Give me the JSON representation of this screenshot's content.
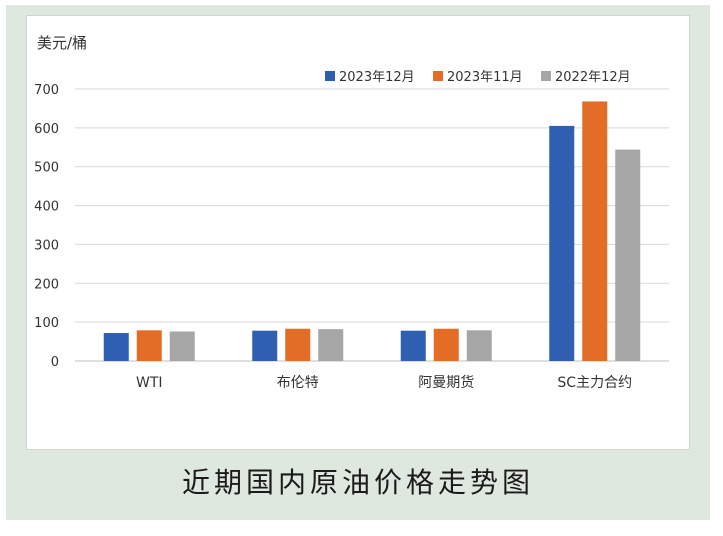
{
  "caption": "近期国内原油价格走势图",
  "chart_data": {
    "type": "bar",
    "ylabel": "美元/桶",
    "ylim": [
      0,
      700
    ],
    "yticks": [
      0,
      100,
      200,
      300,
      400,
      500,
      600,
      700
    ],
    "grid": true,
    "legend_position": "top-right",
    "categories": [
      "WTI",
      "布伦特",
      "阿曼期货",
      "SC主力合约"
    ],
    "series": [
      {
        "name": "2023年12月",
        "color": "#2e5fb0",
        "values": [
          72,
          78,
          78,
          605
        ]
      },
      {
        "name": "2023年11月",
        "color": "#e36c26",
        "values": [
          79,
          83,
          83,
          668
        ]
      },
      {
        "name": "2022年12月",
        "color": "#a6a6a6",
        "values": [
          76,
          82,
          79,
          544
        ]
      }
    ]
  }
}
